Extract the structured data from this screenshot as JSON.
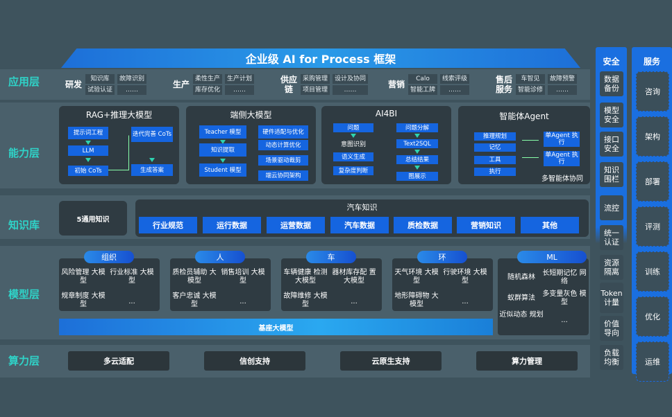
{
  "title": "企业级 AI for Process 框架",
  "layers": {
    "app": "应用层",
    "capability": "能力层",
    "knowledge": "知识库",
    "model": "模型层",
    "compute": "算力层"
  },
  "app_groups": [
    {
      "name": "研发",
      "items": [
        "知识库",
        "试验认证",
        "故障识别",
        "……"
      ]
    },
    {
      "name": "生产",
      "items": [
        "柔性生产",
        "库存优化",
        "生产计划",
        "……"
      ]
    },
    {
      "name": "供应链",
      "items": [
        "采购管理",
        "项目管理",
        "设计及协同",
        "……"
      ]
    },
    {
      "name": "营销",
      "items": [
        "Calo",
        "智能工牌",
        "线索评级",
        "……"
      ]
    },
    {
      "name": "售后服务",
      "items": [
        "车智见",
        "智能诊修",
        "故障预警",
        "……"
      ]
    }
  ],
  "capability": {
    "rag": {
      "title": "RAG+推理大模型",
      "items": [
        "提示词工程",
        "LLM",
        "初始 CoTs",
        "迭代完善 CoTs",
        "生成答案"
      ]
    },
    "edge": {
      "title": "端侧大模型",
      "left": [
        "Teacher 模型",
        "知识提取",
        "Student 模型"
      ],
      "right": [
        "硬件适配与优化",
        "动态计算优化",
        "场景驱动裁剪",
        "端云协同架构"
      ]
    },
    "ai4bi": {
      "title": "AI4BI",
      "left": [
        "问题",
        "意图识别",
        "语义生成",
        "复杂度判断"
      ],
      "right": [
        "问题分解",
        "Text2SQL",
        "总结结果",
        "图展示"
      ]
    },
    "agent": {
      "title": "智能体Agent",
      "left": [
        "推理规划",
        "记忆",
        "工具",
        "执行"
      ],
      "right": [
        "单Agent 执行",
        "单Agent 执行"
      ],
      "footer": "多智能体协同"
    }
  },
  "knowledge": {
    "general": "5通用知识",
    "auto_title": "汽车知识",
    "auto_items": [
      "行业规范",
      "运行数据",
      "运营数据",
      "汽车数据",
      "质检数据",
      "营销知识",
      "其他"
    ]
  },
  "model": {
    "groups": [
      {
        "name": "组织",
        "items": [
          "风险管理 大模型",
          "行业标准 大模型",
          "规章制度 大模型",
          "..."
        ]
      },
      {
        "name": "人",
        "items": [
          "质检员辅助 大模型",
          "销售培训 大模型",
          "客户忠诚 大模型",
          "..."
        ]
      },
      {
        "name": "车",
        "items": [
          "车辆健康 检测大模型",
          "器材库存配 置大模型",
          "故障维修 大模型",
          "..."
        ]
      },
      {
        "name": "环",
        "items": [
          "天气环境 大模型",
          "行驶环境 大模型",
          "地形障碍物 大模型",
          "..."
        ]
      }
    ],
    "ml": {
      "name": "ML",
      "items": [
        "随机森林",
        "长短期记忆 网络",
        "蚁群算法",
        "多变量灰色 模型",
        "近似动态 规划",
        "..."
      ]
    },
    "base": "基座大模型"
  },
  "compute": [
    "多云适配",
    "信创支持",
    "云原生支持",
    "算力管理"
  ],
  "security": {
    "title": "安全",
    "items": [
      "数据 备份",
      "模型 安全",
      "接口 安全",
      "知识 围栏",
      "流控",
      "统一 认证",
      "资源 隔离",
      "Token 计量",
      "价值 导向",
      "负载 均衡"
    ]
  },
  "service": {
    "title": "服务",
    "items": [
      "咨询",
      "架构",
      "部署",
      "评测",
      "训练",
      "优化",
      "运维"
    ]
  },
  "colors": {
    "background": "#3e535d",
    "accent_blue": "#1565e0",
    "layer_label": "#2fd3c8"
  }
}
